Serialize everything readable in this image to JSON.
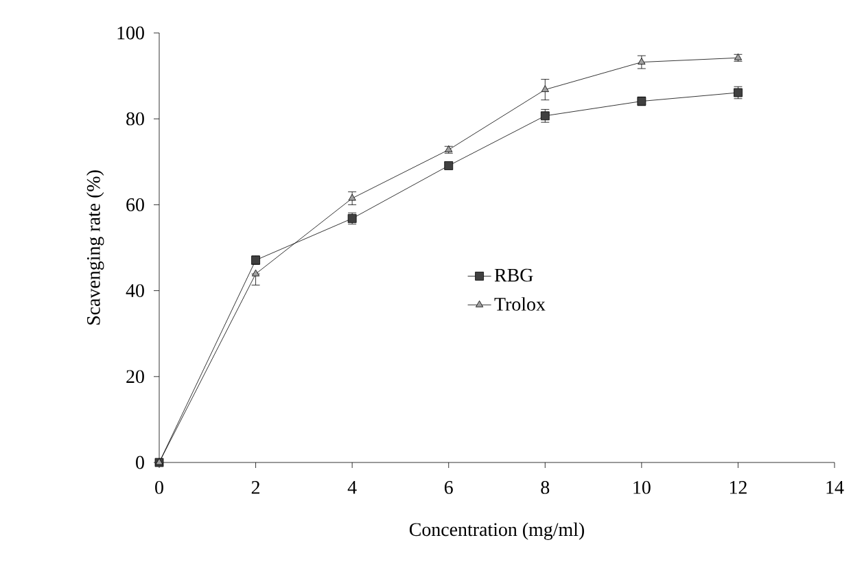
{
  "chart_data": {
    "type": "line",
    "xlabel": "Concentration (mg/ml)",
    "ylabel": "Scavenging rate (%)",
    "x": [
      0,
      2,
      4,
      6,
      8,
      10,
      12
    ],
    "series": [
      {
        "name": "RBG",
        "color": "#404040",
        "marker": "square",
        "values": [
          0,
          47.1,
          56.8,
          69.1,
          80.7,
          84.1,
          86.1
        ],
        "errors": [
          null,
          1,
          1.3,
          0.8,
          1.5,
          1,
          1.4
        ]
      },
      {
        "name": "Trolox",
        "color": "#a0a0a0",
        "marker": "triangle",
        "values": [
          0,
          43.9,
          61.5,
          72.8,
          86.8,
          93.2,
          94.2
        ],
        "errors": [
          null,
          [
            41.3,
            43.9
          ],
          1.5,
          0.8,
          2.4,
          1.5,
          0.8
        ]
      }
    ],
    "xlim": [
      0,
      14
    ],
    "xticks": [
      0,
      2,
      4,
      6,
      8,
      10,
      12,
      14
    ],
    "ylim": [
      0,
      100
    ],
    "yticks": [
      0,
      20,
      40,
      60,
      80,
      100
    ],
    "grid": false,
    "legend": "center",
    "line_style": "solid"
  }
}
